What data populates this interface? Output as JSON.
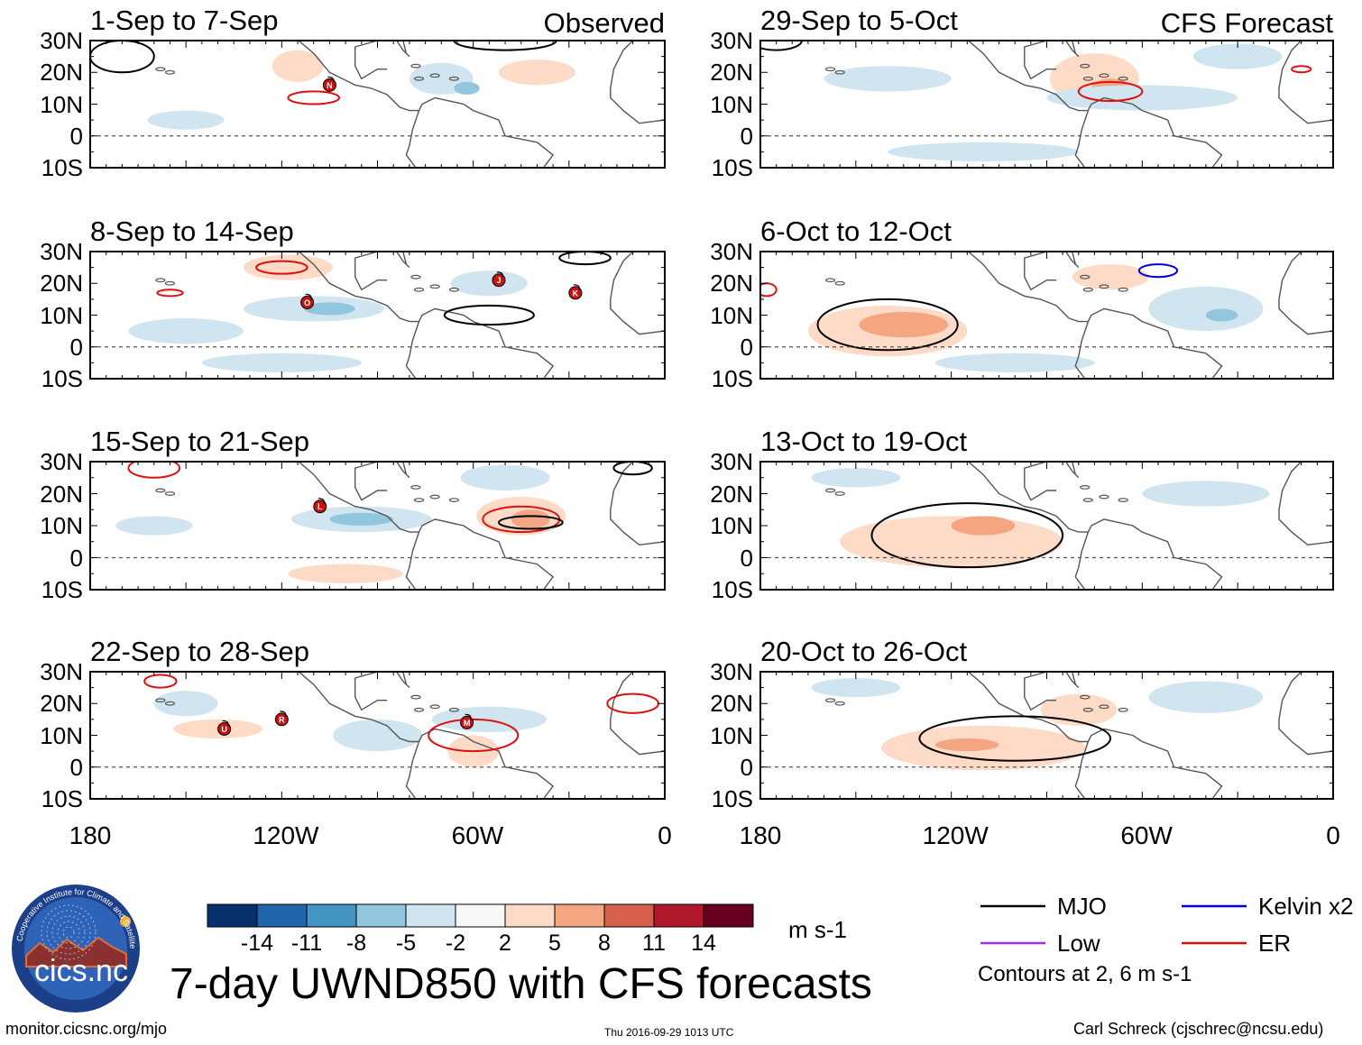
{
  "header": {
    "observed_label": "Observed",
    "forecast_label": "CFS Forecast"
  },
  "panels": [
    {
      "title": "1-Sep to 7-Sep",
      "storms": [
        "N"
      ]
    },
    {
      "title": "8-Sep to 14-Sep",
      "storms": [
        "O",
        "J",
        "K"
      ]
    },
    {
      "title": "15-Sep to 21-Sep",
      "storms": [
        "L"
      ]
    },
    {
      "title": "22-Sep to 28-Sep",
      "storms": [
        "U",
        "R",
        "M"
      ]
    },
    {
      "title": "29-Sep to 5-Oct",
      "storms": []
    },
    {
      "title": "6-Oct to 12-Oct",
      "storms": []
    },
    {
      "title": "13-Oct to 19-Oct",
      "storms": []
    },
    {
      "title": "20-Oct to 26-Oct",
      "storms": []
    }
  ],
  "latitude_labels": [
    "30N",
    "20N",
    "10N",
    "0",
    "10S"
  ],
  "longitude_labels": [
    "180",
    "120W",
    "60W",
    "0"
  ],
  "colorbar": {
    "ticks": [
      "-14",
      "-11",
      "-8",
      "-5",
      "-2",
      "2",
      "5",
      "8",
      "11",
      "14"
    ],
    "colors": [
      "#08306b",
      "#2166ac",
      "#4393c3",
      "#92c5de",
      "#d1e5f0",
      "#f7f7f7",
      "#fddbc7",
      "#f4a582",
      "#d6604d",
      "#b2182b",
      "#67001f"
    ],
    "units": "m s-1"
  },
  "legend": {
    "items": [
      {
        "label": "MJO",
        "color": "#000000"
      },
      {
        "label": "Kelvin x2",
        "color": "#0000dd"
      },
      {
        "label": "Low",
        "color": "#9933ee"
      },
      {
        "label": "ER",
        "color": "#dd1111"
      }
    ],
    "contour_note": "Contours at 2, 6 m s-1"
  },
  "logo_text": "cics.nc",
  "logo_ring_text": "Cooperative Institute for Climate and Satellites",
  "main_title": "7-day UWND850 with CFS forecasts",
  "footer": {
    "website": "monitor.cicsnc.org/mjo",
    "timestamp": "Thu 2016-09-29 1013 UTC",
    "author": "Carl Schreck (cjschrec@ncsu.edu)"
  },
  "colors": {
    "land_outline": "#555555",
    "equator": "#555555",
    "neg_light": "#d1e5f0",
    "neg_mid": "#92c5de",
    "pos_light": "#fddbc7",
    "pos_mid": "#f4a582",
    "storm": "#cc1111"
  }
}
